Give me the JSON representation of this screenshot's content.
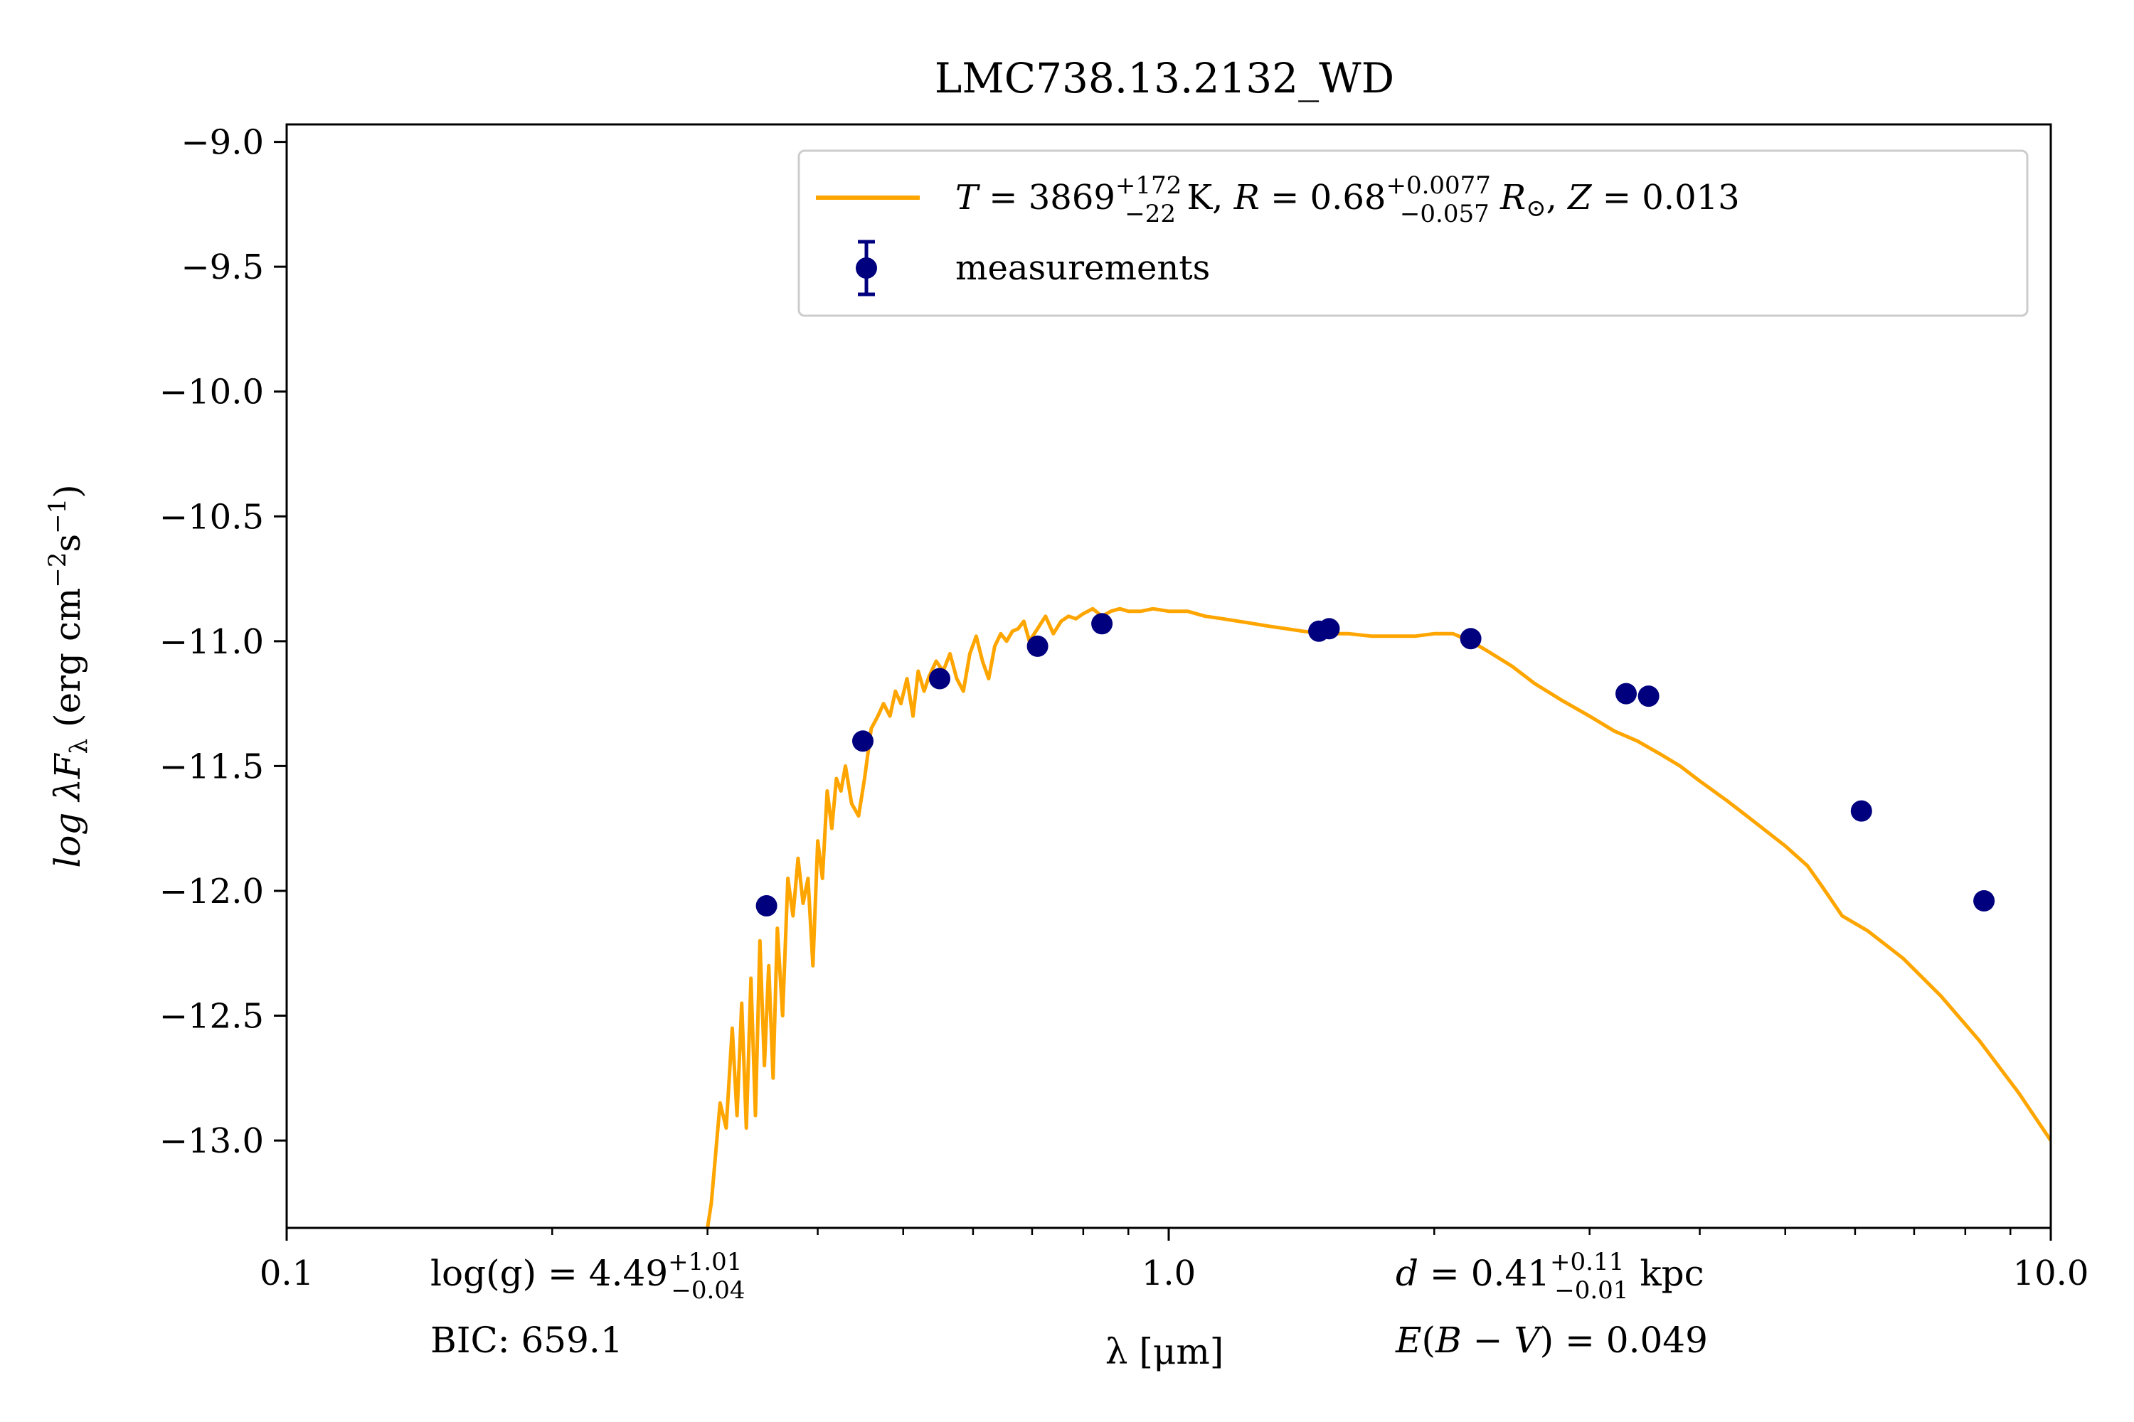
{
  "chart_data": {
    "type": "line",
    "title": "LMC738.13.2132_WD",
    "xlabel": "λ [μm]",
    "ylabel": "log λF",
    "ylabel_sub": "λ",
    "ylabel_units": " (erg cm",
    "ylabel_units_exp1": "−2",
    "ylabel_units_mid": "s",
    "ylabel_units_exp2": "−1",
    "ylabel_units_end": ")",
    "xscale": "log",
    "xlim": [
      0.1,
      10.0
    ],
    "ylim": [
      -13.35,
      -8.93
    ],
    "x_ticks": [
      {
        "value": 0.1,
        "label": "0.1"
      },
      {
        "value": 1.0,
        "label": "1.0"
      },
      {
        "value": 10.0,
        "label": "10.0"
      }
    ],
    "y_ticks": [
      {
        "value": -9.0,
        "label": "−9.0"
      },
      {
        "value": -9.5,
        "label": "−9.5"
      },
      {
        "value": -10.0,
        "label": "−10.0"
      },
      {
        "value": -10.5,
        "label": "−10.5"
      },
      {
        "value": -11.0,
        "label": "−11.0"
      },
      {
        "value": -11.5,
        "label": "−11.5"
      },
      {
        "value": -12.0,
        "label": "−12.0"
      },
      {
        "value": -12.5,
        "label": "−12.5"
      },
      {
        "value": -13.0,
        "label": "−13.0"
      }
    ],
    "series": [
      {
        "name": "model",
        "kind": "line",
        "color": "#ffa500",
        "x": [
          0.3,
          0.303,
          0.31,
          0.315,
          0.32,
          0.324,
          0.328,
          0.332,
          0.336,
          0.34,
          0.344,
          0.348,
          0.352,
          0.356,
          0.36,
          0.365,
          0.37,
          0.375,
          0.38,
          0.385,
          0.39,
          0.395,
          0.4,
          0.405,
          0.41,
          0.415,
          0.42,
          0.425,
          0.43,
          0.437,
          0.445,
          0.452,
          0.46,
          0.468,
          0.475,
          0.483,
          0.49,
          0.497,
          0.505,
          0.513,
          0.52,
          0.528,
          0.535,
          0.545,
          0.555,
          0.565,
          0.575,
          0.585,
          0.595,
          0.605,
          0.615,
          0.625,
          0.635,
          0.645,
          0.655,
          0.665,
          0.675,
          0.685,
          0.695,
          0.71,
          0.725,
          0.74,
          0.755,
          0.77,
          0.785,
          0.8,
          0.82,
          0.84,
          0.86,
          0.88,
          0.9,
          0.93,
          0.96,
          1.0,
          1.05,
          1.1,
          1.15,
          1.2,
          1.25,
          1.3,
          1.36,
          1.42,
          1.5,
          1.6,
          1.7,
          1.8,
          1.9,
          2.0,
          2.1,
          2.2,
          2.3,
          2.45,
          2.6,
          2.8,
          3.0,
          3.2,
          3.4,
          3.6,
          3.8,
          4.0,
          4.3,
          4.6,
          5.0,
          5.3,
          5.5,
          5.8,
          6.2,
          6.8,
          7.5,
          8.3,
          9.2,
          10.0
        ],
        "y": [
          -13.35,
          -13.25,
          -12.85,
          -12.95,
          -12.55,
          -12.9,
          -12.45,
          -12.95,
          -12.35,
          -12.9,
          -12.2,
          -12.7,
          -12.3,
          -12.75,
          -12.15,
          -12.5,
          -11.95,
          -12.1,
          -11.87,
          -12.05,
          -11.95,
          -12.3,
          -11.8,
          -11.95,
          -11.6,
          -11.75,
          -11.55,
          -11.6,
          -11.5,
          -11.65,
          -11.7,
          -11.55,
          -11.35,
          -11.3,
          -11.25,
          -11.3,
          -11.2,
          -11.25,
          -11.15,
          -11.3,
          -11.12,
          -11.2,
          -11.14,
          -11.08,
          -11.12,
          -11.05,
          -11.15,
          -11.2,
          -11.05,
          -10.98,
          -11.08,
          -11.15,
          -11.02,
          -10.97,
          -11.0,
          -10.96,
          -10.95,
          -10.92,
          -11.0,
          -10.95,
          -10.9,
          -10.97,
          -10.92,
          -10.9,
          -10.91,
          -10.89,
          -10.87,
          -10.9,
          -10.88,
          -10.87,
          -10.88,
          -10.88,
          -10.87,
          -10.88,
          -10.88,
          -10.9,
          -10.91,
          -10.92,
          -10.93,
          -10.94,
          -10.95,
          -10.96,
          -10.97,
          -10.97,
          -10.98,
          -10.98,
          -10.98,
          -10.97,
          -10.97,
          -11.0,
          -11.04,
          -11.1,
          -11.17,
          -11.24,
          -11.3,
          -11.36,
          -11.4,
          -11.45,
          -11.5,
          -11.56,
          -11.64,
          -11.72,
          -11.82,
          -11.9,
          -11.98,
          -12.1,
          -12.16,
          -12.27,
          -12.42,
          -12.6,
          -12.81,
          -13.0
        ]
      },
      {
        "name": "measurements",
        "kind": "points",
        "color": "#00007f",
        "x": [
          0.35,
          0.45,
          0.55,
          0.71,
          0.84,
          1.48,
          1.52,
          2.2,
          3.3,
          3.5,
          6.1,
          8.4
        ],
        "y": [
          -12.06,
          -11.4,
          -11.15,
          -11.02,
          -10.93,
          -10.96,
          -10.95,
          -10.99,
          -11.21,
          -11.22,
          -11.68,
          -12.04
        ]
      }
    ],
    "legend": {
      "position": "top-right",
      "model_T_prefix": "T",
      "model_T_eq": " = 3869",
      "model_T_sup": "+172",
      "model_T_sub": "−22",
      "model_K": " K, ",
      "model_R_prefix": "R",
      "model_R_eq": " = 0.68",
      "model_R_sup": "+0.0077",
      "model_R_sub": "−0.057",
      "model_Rsun": " R",
      "model_sun_sub": "⊙",
      "model_Z_sep": ", ",
      "model_Z_prefix": "Z",
      "model_Z_eq": " = 0.013",
      "measurements_label": "measurements"
    },
    "annotations": {
      "logg_main": "log(g) = 4.49",
      "logg_sup": "+1.01",
      "logg_sub": "−0.04",
      "bic": "BIC: 659.1",
      "d_prefix": "d",
      "d_eq": " = 0.41",
      "d_sup": "+0.11",
      "d_sub": "−0.01",
      "d_unit": " kpc",
      "ebv_E": "E",
      "ebv_paren_open": "(",
      "ebv_B": "B",
      "ebv_minus": " − ",
      "ebv_V": "V",
      "ebv_rest": ") = 0.049"
    },
    "grid": false
  }
}
